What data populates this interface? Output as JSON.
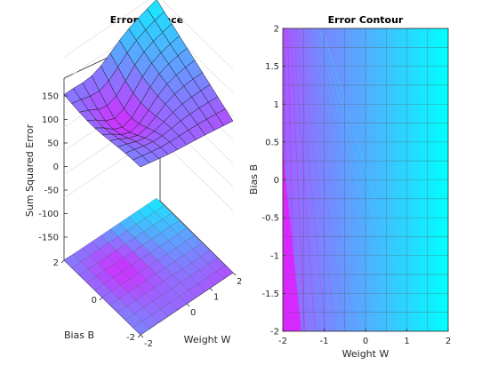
{
  "chart_data": [
    {
      "type": "surface",
      "title": "Error Surface",
      "xlabel": "Weight W",
      "ylabel": "Bias B",
      "zlabel": "Sum Squared Error",
      "x_ticks": [
        -2,
        0,
        1,
        2
      ],
      "y_ticks": [
        -2,
        0,
        2
      ],
      "z_ticks": [
        -150,
        -100,
        -50,
        0,
        50,
        100,
        150
      ],
      "xlim": [
        -2,
        2
      ],
      "ylim": [
        -2,
        2
      ],
      "zlim": [
        -150,
        150
      ],
      "grid": "on",
      "colormap": "cool",
      "surface_corner_values": {
        "w-2_b2": 75,
        "w2_b2": 140,
        "w2_b-2": 40,
        "w-2_b-2": 75
      },
      "surface_minimum": -5
    },
    {
      "type": "contour",
      "title": "Error Contour",
      "xlabel": "Weight W",
      "ylabel": "Bias B",
      "x_ticks": [
        -2,
        -1,
        0,
        1,
        2
      ],
      "y_ticks": [
        -2,
        -1.5,
        -1,
        -0.5,
        0,
        0.5,
        1,
        1.5,
        2
      ],
      "xlim": [
        -2,
        2
      ],
      "ylim": [
        -2,
        2
      ],
      "grid": "on",
      "colormap": "cool"
    }
  ],
  "colors": {
    "cool_low": "#ff00ff",
    "cool_mid": "#8080ff",
    "cool_high": "#00ffff",
    "grid": "#dcdcdc",
    "axis": "#262626"
  }
}
